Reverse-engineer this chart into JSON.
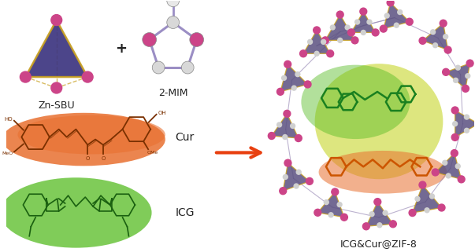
{
  "bg_color": "#ffffff",
  "figsize": [
    6.03,
    3.21
  ],
  "dpi": 100,
  "labels": {
    "zn_sbu": "Zn-SBU",
    "mim": "2-MIM",
    "cur": "Cur",
    "icg": "ICG",
    "product": "ICG&Cur@ZIF-8",
    "plus": "+"
  },
  "colors": {
    "triangle_face": "#3d3580",
    "triangle_edge": "#c8a020",
    "zn_atom": "#cc4488",
    "pentagon_edge": "#9b8ec4",
    "n_atom": "#cc4488",
    "c_atom": "#e0e0e0",
    "cur_bg": "#e87030",
    "cur_mol": "#7a3000",
    "icg_bg": "#55bb22",
    "icg_mol": "#1a6010",
    "arrow_color": "#e84010",
    "label_color": "#222222",
    "zif8_sphere": "#c8d830",
    "zif8_frame": "#5a5080",
    "zif8_edge": "#c8a020",
    "zif8_atom": "#cc4488",
    "framework_line": "#9080b0"
  },
  "font_sizes": {
    "label": 9,
    "label_product": 9,
    "plus": 13
  }
}
